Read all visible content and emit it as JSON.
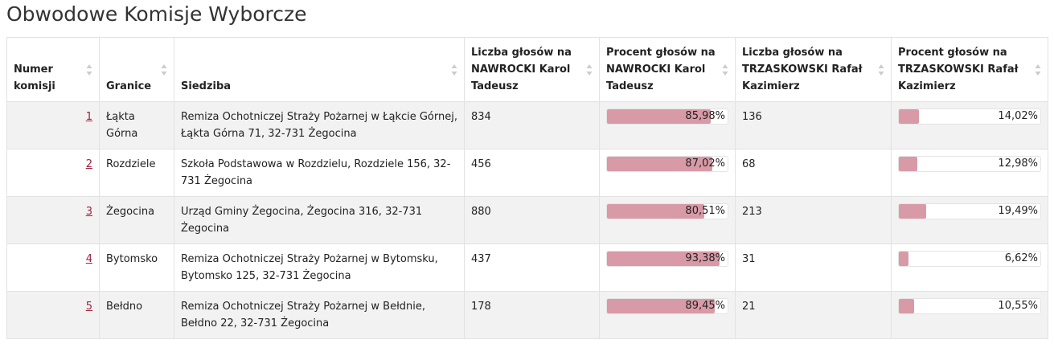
{
  "header": {
    "title": "Obwodowe Komisje Wyborcze"
  },
  "table": {
    "columns": [
      "Numer komisji",
      "Granice",
      "Siedziba",
      "Liczba głosów na NAWROCKI Karol Tadeusz",
      "Procent głosów na NAWROCKI Karol Tadeusz",
      "Liczba głosów na TRZASKOWSKI Rafał Kazimierz",
      "Procent głosów na TRZASKOWSKI Rafał Kazimierz"
    ],
    "rows": [
      [
        "1",
        "Łąkta Górna",
        "Remiza Ochotniczej Straży Pożarnej w Łąkcie Górnej, Łąkta Górna 71, 32-731 Żegocina",
        834,
        {
          "value": 85.98,
          "label": "85,98%"
        },
        136,
        {
          "value": 14.02,
          "label": "14,02%"
        }
      ],
      [
        "2",
        "Rozdziele",
        "Szkoła Podstawowa w Rozdzielu, Rozdziele 156, 32-731 Żegocina",
        456,
        {
          "value": 87.02,
          "label": "87,02%"
        },
        68,
        {
          "value": 12.98,
          "label": "12,98%"
        }
      ],
      [
        "3",
        "Żegocina",
        "Urząd Gminy Żegocina, Żegocina 316, 32-731 Żegocina",
        880,
        {
          "value": 80.51,
          "label": "80,51%"
        },
        213,
        {
          "value": 19.49,
          "label": "19,49%"
        }
      ],
      [
        "4",
        "Bytomsko",
        "Remiza Ochotniczej Straży Pożarnej w Bytomsku, Bytomsko 125, 32-731 Żegocina",
        437,
        {
          "value": 93.38,
          "label": "93,38%"
        },
        31,
        {
          "value": 6.62,
          "label": "6,62%"
        }
      ],
      [
        "5",
        "Bełdno",
        "Remiza Ochotniczej Straży Pożarnej w Bełdnie, Bełdno 22, 32-731 Żegocina",
        178,
        {
          "value": 89.45,
          "label": "89,45%"
        },
        21,
        {
          "value": 10.55,
          "label": "10,55%"
        }
      ]
    ]
  }
}
